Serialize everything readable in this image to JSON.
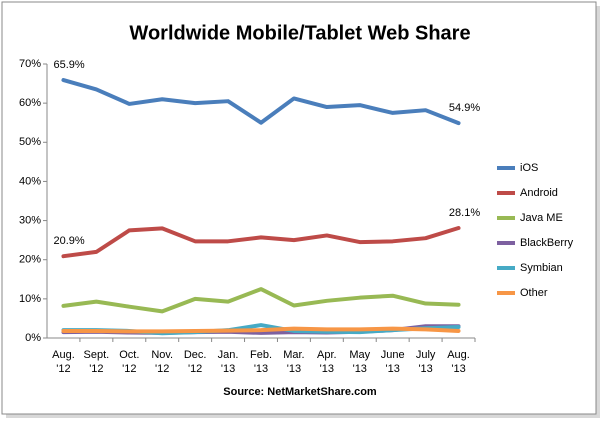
{
  "chart_data": {
    "type": "line",
    "title": "Worldwide Mobile/Tablet Web Share",
    "source": "Source: NetMarketShare.com",
    "categories": [
      "Aug. '12",
      "Sept. '12",
      "Oct. '12",
      "Nov. '12",
      "Dec. '12",
      "Jan. '13",
      "Feb. '13",
      "Mar. '13",
      "Apr. '13",
      "May '13",
      "June '13",
      "July '13",
      "Aug. '13"
    ],
    "series": [
      {
        "name": "iOS",
        "color": "#4a7ebb",
        "values": [
          65.9,
          63.5,
          59.8,
          61.0,
          60.0,
          60.5,
          55.0,
          61.2,
          59.0,
          59.5,
          57.5,
          58.2,
          54.9
        ],
        "value_labels": [
          "65.9%",
          null,
          null,
          null,
          null,
          null,
          null,
          null,
          null,
          null,
          null,
          null,
          "54.9%"
        ]
      },
      {
        "name": "Android",
        "color": "#be4b48",
        "values": [
          20.9,
          22.0,
          27.5,
          28.0,
          24.7,
          24.7,
          25.7,
          25.0,
          26.2,
          24.5,
          24.7,
          25.5,
          28.1
        ],
        "value_labels": [
          "20.9%",
          null,
          null,
          null,
          null,
          null,
          null,
          null,
          null,
          null,
          null,
          null,
          "28.1%"
        ]
      },
      {
        "name": "Java ME",
        "color": "#98b954",
        "values": [
          8.2,
          9.3,
          8.0,
          6.8,
          10.0,
          9.3,
          12.5,
          8.3,
          9.5,
          10.3,
          10.8,
          8.8,
          8.5
        ]
      },
      {
        "name": "BlackBerry",
        "color": "#7d60a0",
        "values": [
          1.5,
          1.6,
          1.4,
          1.3,
          1.5,
          1.6,
          1.3,
          1.5,
          1.4,
          1.6,
          2.0,
          3.0,
          3.0
        ]
      },
      {
        "name": "Symbian",
        "color": "#46aac5",
        "values": [
          2.0,
          2.0,
          1.8,
          1.2,
          1.5,
          2.0,
          3.3,
          1.8,
          1.6,
          1.5,
          2.0,
          2.5,
          2.8
        ]
      },
      {
        "name": "Other",
        "color": "#f79646",
        "values": [
          1.8,
          1.8,
          1.7,
          1.7,
          1.8,
          1.9,
          2.0,
          2.4,
          2.2,
          2.2,
          2.4,
          2.2,
          1.8
        ]
      }
    ],
    "ylim": [
      0,
      70
    ],
    "yticks": [
      {
        "value": 0,
        "label": "0%"
      },
      {
        "value": 10,
        "label": "10%"
      },
      {
        "value": 20,
        "label": "20%"
      },
      {
        "value": 30,
        "label": "30%"
      },
      {
        "value": 40,
        "label": "40%"
      },
      {
        "value": 50,
        "label": "50%"
      },
      {
        "value": 60,
        "label": "60%"
      },
      {
        "value": 70,
        "label": "70%"
      }
    ],
    "grid": false,
    "legend": "right"
  }
}
